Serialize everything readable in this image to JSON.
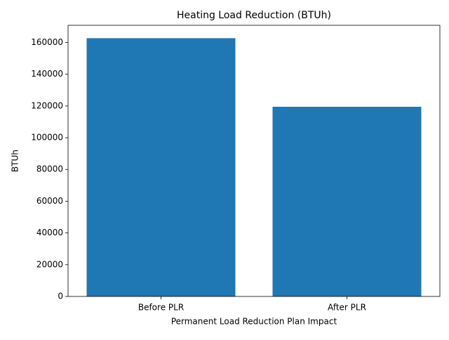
{
  "chart_data": {
    "type": "bar",
    "title": "Heating Load Reduction (BTUh)",
    "x_label": "Permanent Load Reduction Plan Impact",
    "y_label": "BTUh",
    "categories": [
      "Before PLR",
      "After PLR"
    ],
    "values": [
      162700,
      119500
    ],
    "color": "#1f77b4",
    "ylim": [
      0,
      170835
    ],
    "yticks": [
      0,
      20000,
      40000,
      60000,
      80000,
      100000,
      120000,
      140000,
      160000
    ],
    "grid": false
  }
}
